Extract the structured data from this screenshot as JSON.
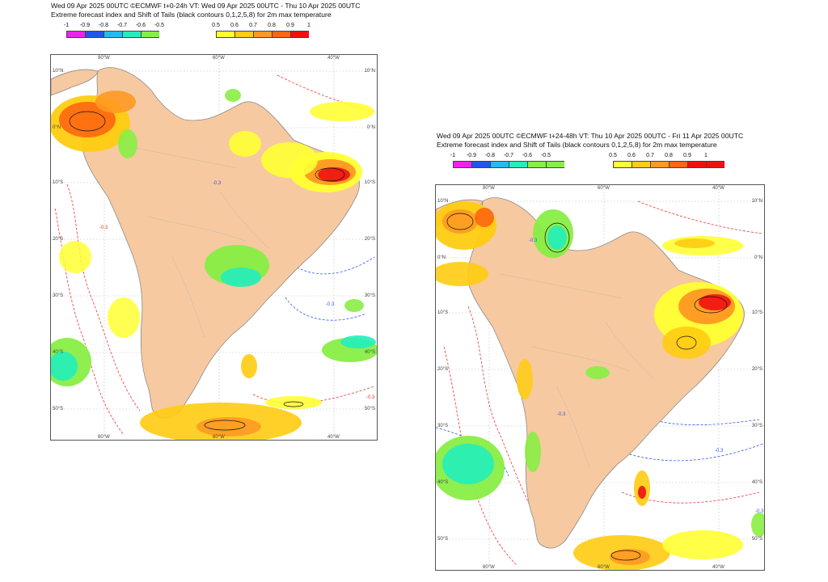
{
  "panels": [
    {
      "title_line1": "Wed 09 Apr 2025 00UTC ©ECMWF t+0-24h  VT: Wed 09 Apr 2025 00UTC - Thu 10 Apr 2025 00UTC",
      "title_line2": "Extreme forecast index and Shift of Tails (black contours 0,1,2,5,8) for 2m max temperature"
    },
    {
      "title_line1": "Wed 09 Apr 2025 00UTC ©ECMWF t+24-48h  VT: Thu 10 Apr 2025 00UTC - Fri 11 Apr 2025 00UTC",
      "title_line2": "Extreme forecast index and Shift of Tails (black contours 0,1,2,5,8) for 2m max temperature"
    }
  ],
  "legend": {
    "cold_ticks": [
      "-1",
      "-0.9",
      "-0.8",
      "-0.7",
      "-0.6",
      "-0.5"
    ],
    "cold_colors": [
      "#ee22ee",
      "#2255ee",
      "#22bbee",
      "#22eebb",
      "#88ee44"
    ],
    "warm_ticks": [
      "0.5",
      "0.6",
      "0.7",
      "0.8",
      "0.9",
      "1"
    ],
    "warm_colors": [
      "#ffff33",
      "#ffcc11",
      "#ff9922",
      "#ff6611",
      "#ee1111"
    ]
  },
  "axes": {
    "lon_labels": [
      "80°W",
      "60°W",
      "40°W"
    ],
    "lat_labels": [
      "10°N",
      "0°N",
      "10°S",
      "20°S",
      "30°S",
      "40°S",
      "50°S"
    ]
  },
  "contour_label": "-0.3",
  "colors": {
    "land": "#f6c9a0",
    "ocean": "#ffffff",
    "coast": "#8a8a8a",
    "cold_contour": "#3355ee",
    "warm_contour": "#ee3333"
  }
}
